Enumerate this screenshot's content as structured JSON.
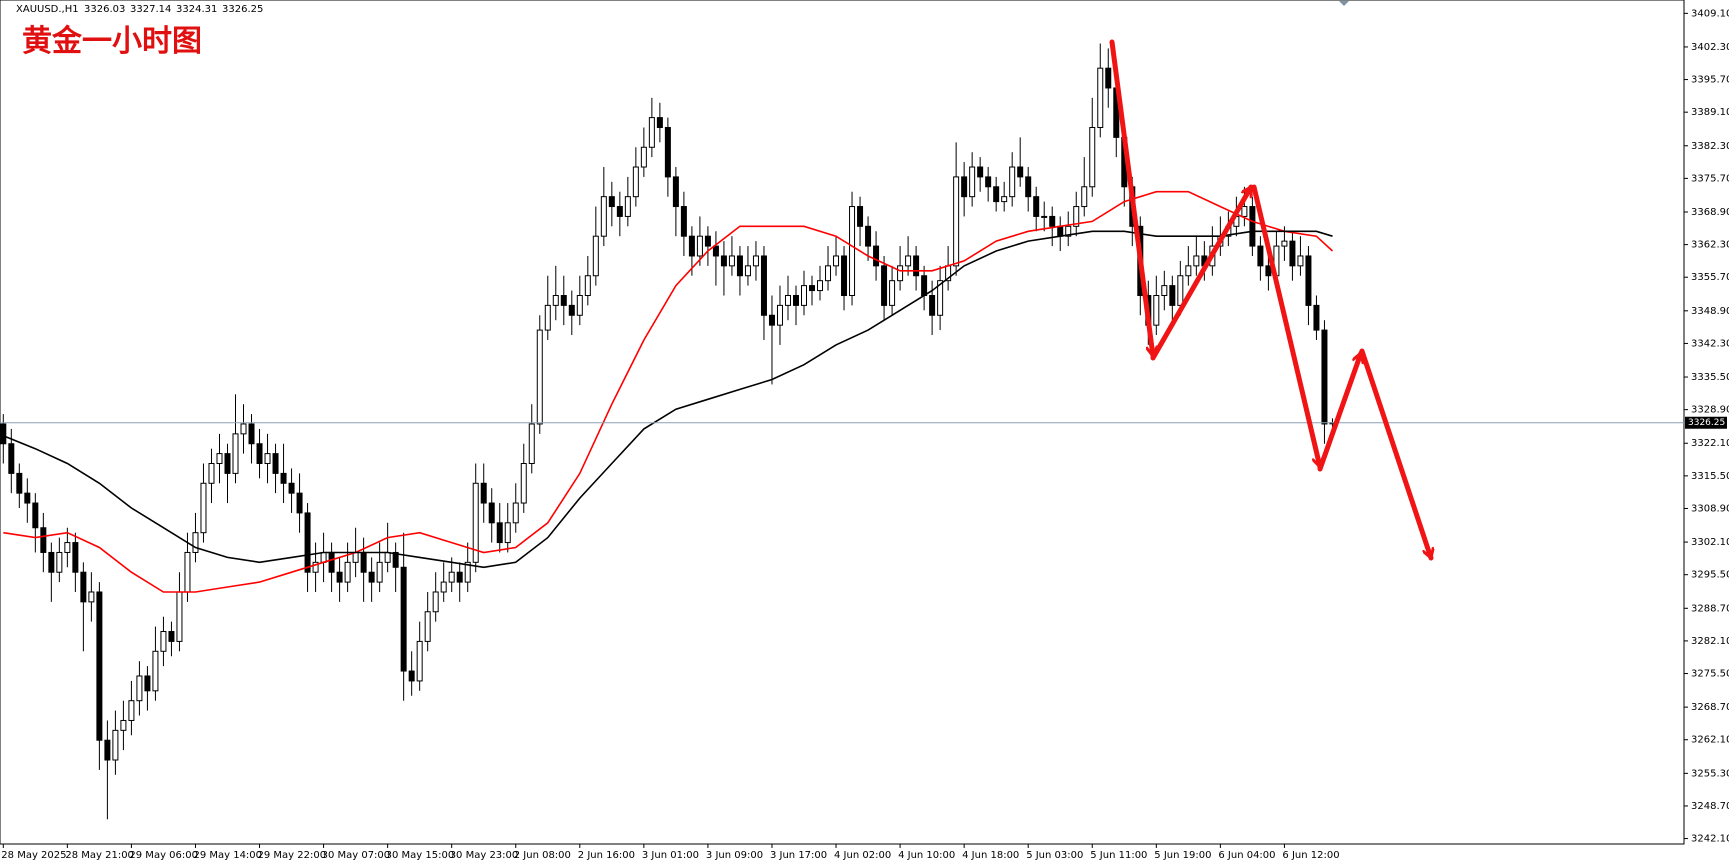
{
  "chart_data": {
    "type": "candlestick",
    "title": "黄金一小时图",
    "symbol": "XAUUSD.,H1",
    "categories": [
      "28 May 2025",
      null,
      null,
      null,
      null,
      null,
      null,
      null,
      "28 May 21:00",
      null,
      null,
      null,
      null,
      null,
      null,
      null,
      "29 May 06:00",
      null,
      null,
      null,
      null,
      null,
      null,
      null,
      "29 May 14:00",
      null,
      null,
      null,
      null,
      null,
      null,
      null,
      "29 May 22:00",
      null,
      null,
      null,
      null,
      null,
      null,
      null,
      "30 May 07:00",
      null,
      null,
      null,
      null,
      null,
      null,
      null,
      "30 May 15:00",
      null,
      null,
      null,
      null,
      null,
      null,
      null,
      "30 May 23:00",
      null,
      null,
      null,
      null,
      null,
      null,
      null,
      "2 Jun 08:00",
      null,
      null,
      null,
      null,
      null,
      null,
      null,
      "2 Jun 16:00",
      null,
      null,
      null,
      null,
      null,
      null,
      null,
      "3 Jun 01:00",
      null,
      null,
      null,
      null,
      null,
      null,
      null,
      "3 Jun 09:00",
      null,
      null,
      null,
      null,
      null,
      null,
      null,
      "3 Jun 17:00",
      null,
      null,
      null,
      null,
      null,
      null,
      null,
      "4 Jun 02:00",
      null,
      null,
      null,
      null,
      null,
      null,
      null,
      "4 Jun 10:00",
      null,
      null,
      null,
      null,
      null,
      null,
      null,
      "4 Jun 18:00",
      null,
      null,
      null,
      null,
      null,
      null,
      null,
      "5 Jun 03:00",
      null,
      null,
      null,
      null,
      null,
      null,
      null,
      "5 Jun 11:00",
      null,
      null,
      null,
      null,
      null,
      null,
      null,
      "5 Jun 19:00",
      null,
      null,
      null,
      null,
      null,
      null,
      null,
      "6 Jun 04:00",
      null,
      null,
      null,
      null,
      null,
      null,
      null,
      "6 Jun 12:00",
      null,
      null,
      null,
      null,
      null,
      null
    ],
    "ohlc": [
      [
        3326,
        3328,
        3318,
        3322
      ],
      [
        3322,
        3325,
        3312,
        3316
      ],
      [
        3316,
        3318,
        3309,
        3312
      ],
      [
        3312,
        3315,
        3306,
        3310
      ],
      [
        3310,
        3312,
        3300,
        3305
      ],
      [
        3305,
        3308,
        3296,
        3300
      ],
      [
        3300,
        3302,
        3290,
        3296
      ],
      [
        3296,
        3303,
        3294,
        3300
      ],
      [
        3300,
        3305,
        3297,
        3302
      ],
      [
        3302,
        3304,
        3292,
        3296
      ],
      [
        3296,
        3298,
        3280,
        3290
      ],
      [
        3290,
        3296,
        3286,
        3292
      ],
      [
        3292,
        3294,
        3256,
        3262
      ],
      [
        3262,
        3266,
        3246,
        3258
      ],
      [
        3258,
        3268,
        3255,
        3264
      ],
      [
        3264,
        3270,
        3260,
        3266
      ],
      [
        3266,
        3274,
        3263,
        3270
      ],
      [
        3270,
        3278,
        3267,
        3275
      ],
      [
        3275,
        3277,
        3268,
        3272
      ],
      [
        3272,
        3285,
        3270,
        3280
      ],
      [
        3280,
        3287,
        3277,
        3284
      ],
      [
        3284,
        3286,
        3279,
        3282
      ],
      [
        3282,
        3296,
        3280,
        3292
      ],
      [
        3292,
        3304,
        3290,
        3300
      ],
      [
        3300,
        3308,
        3298,
        3304
      ],
      [
        3304,
        3318,
        3302,
        3314
      ],
      [
        3314,
        3321,
        3310,
        3318
      ],
      [
        3318,
        3324,
        3314,
        3320
      ],
      [
        3320,
        3322,
        3310,
        3316
      ],
      [
        3316,
        3332,
        3314,
        3324
      ],
      [
        3324,
        3330,
        3320,
        3326
      ],
      [
        3326,
        3328,
        3318,
        3322
      ],
      [
        3322,
        3325,
        3315,
        3318
      ],
      [
        3318,
        3324,
        3314,
        3320
      ],
      [
        3320,
        3322,
        3312,
        3316
      ],
      [
        3316,
        3322,
        3310,
        3314
      ],
      [
        3314,
        3317,
        3308,
        3312
      ],
      [
        3312,
        3316,
        3304,
        3308
      ],
      [
        3308,
        3310,
        3292,
        3296
      ],
      [
        3296,
        3302,
        3292,
        3298
      ],
      [
        3298,
        3304,
        3294,
        3300
      ],
      [
        3300,
        3302,
        3292,
        3296
      ],
      [
        3296,
        3299,
        3290,
        3294
      ],
      [
        3294,
        3302,
        3292,
        3298
      ],
      [
        3298,
        3305,
        3295,
        3300
      ],
      [
        3300,
        3303,
        3290,
        3296
      ],
      [
        3296,
        3299,
        3290,
        3294
      ],
      [
        3294,
        3302,
        3292,
        3298
      ],
      [
        3298,
        3306,
        3296,
        3300
      ],
      [
        3300,
        3302,
        3292,
        3297
      ],
      [
        3297,
        3304,
        3270,
        3276
      ],
      [
        3276,
        3280,
        3271,
        3274
      ],
      [
        3274,
        3286,
        3272,
        3282
      ],
      [
        3282,
        3292,
        3280,
        3288
      ],
      [
        3288,
        3296,
        3286,
        3292
      ],
      [
        3292,
        3298,
        3290,
        3294
      ],
      [
        3294,
        3299,
        3292,
        3296
      ],
      [
        3296,
        3298,
        3290,
        3294
      ],
      [
        3294,
        3302,
        3292,
        3298
      ],
      [
        3298,
        3318,
        3296,
        3314
      ],
      [
        3314,
        3318,
        3306,
        3310
      ],
      [
        3310,
        3313,
        3302,
        3306
      ],
      [
        3306,
        3310,
        3300,
        3302
      ],
      [
        3302,
        3310,
        3300,
        3306
      ],
      [
        3306,
        3314,
        3304,
        3310
      ],
      [
        3310,
        3322,
        3308,
        3318
      ],
      [
        3318,
        3330,
        3316,
        3326
      ],
      [
        3326,
        3348,
        3324,
        3345
      ],
      [
        3345,
        3356,
        3343,
        3350
      ],
      [
        3350,
        3358,
        3347,
        3352
      ],
      [
        3352,
        3356,
        3346,
        3350
      ],
      [
        3350,
        3353,
        3344,
        3348
      ],
      [
        3348,
        3356,
        3346,
        3352
      ],
      [
        3352,
        3360,
        3350,
        3356
      ],
      [
        3356,
        3370,
        3354,
        3364
      ],
      [
        3364,
        3378,
        3362,
        3372
      ],
      [
        3372,
        3375,
        3366,
        3370
      ],
      [
        3370,
        3373,
        3364,
        3368
      ],
      [
        3368,
        3376,
        3366,
        3372
      ],
      [
        3372,
        3382,
        3370,
        3378
      ],
      [
        3378,
        3386,
        3376,
        3382
      ],
      [
        3382,
        3392,
        3380,
        3388
      ],
      [
        3388,
        3391,
        3383,
        3386
      ],
      [
        3386,
        3388,
        3372,
        3376
      ],
      [
        3376,
        3378,
        3364,
        3370
      ],
      [
        3370,
        3373,
        3360,
        3364
      ],
      [
        3364,
        3366,
        3356,
        3360
      ],
      [
        3360,
        3368,
        3358,
        3364
      ],
      [
        3364,
        3366,
        3358,
        3362
      ],
      [
        3362,
        3365,
        3354,
        3360
      ],
      [
        3360,
        3363,
        3352,
        3358
      ],
      [
        3358,
        3364,
        3356,
        3360
      ],
      [
        3360,
        3362,
        3352,
        3356
      ],
      [
        3356,
        3362,
        3354,
        3358
      ],
      [
        3358,
        3363,
        3355,
        3360
      ],
      [
        3360,
        3362,
        3343,
        3348
      ],
      [
        3348,
        3352,
        3334,
        3346
      ],
      [
        3346,
        3354,
        3342,
        3350
      ],
      [
        3350,
        3356,
        3347,
        3352
      ],
      [
        3352,
        3354,
        3346,
        3350
      ],
      [
        3350,
        3357,
        3348,
        3354
      ],
      [
        3354,
        3356,
        3350,
        3353
      ],
      [
        3353,
        3358,
        3351,
        3355
      ],
      [
        3355,
        3362,
        3353,
        3358
      ],
      [
        3358,
        3364,
        3356,
        3360
      ],
      [
        3360,
        3362,
        3349,
        3352
      ],
      [
        3352,
        3373,
        3350,
        3370
      ],
      [
        3370,
        3372,
        3362,
        3366
      ],
      [
        3366,
        3368,
        3359,
        3362
      ],
      [
        3362,
        3365,
        3355,
        3358
      ],
      [
        3358,
        3360,
        3347,
        3350
      ],
      [
        3350,
        3358,
        3348,
        3355
      ],
      [
        3355,
        3362,
        3353,
        3358
      ],
      [
        3358,
        3364,
        3356,
        3360
      ],
      [
        3360,
        3362,
        3353,
        3356
      ],
      [
        3356,
        3358,
        3349,
        3352
      ],
      [
        3352,
        3355,
        3344,
        3348
      ],
      [
        3348,
        3358,
        3345,
        3355
      ],
      [
        3355,
        3362,
        3353,
        3358
      ],
      [
        3358,
        3383,
        3356,
        3376
      ],
      [
        3376,
        3379,
        3368,
        3372
      ],
      [
        3372,
        3381,
        3370,
        3378
      ],
      [
        3378,
        3380,
        3373,
        3376
      ],
      [
        3376,
        3378,
        3371,
        3374
      ],
      [
        3374,
        3376,
        3369,
        3371
      ],
      [
        3371,
        3375,
        3369,
        3372
      ],
      [
        3372,
        3381,
        3370,
        3378
      ],
      [
        3378,
        3384,
        3374,
        3376
      ],
      [
        3376,
        3378,
        3369,
        3372
      ],
      [
        3372,
        3374,
        3365,
        3368
      ],
      [
        3368,
        3371,
        3365,
        3368
      ],
      [
        3368,
        3370,
        3362,
        3366
      ],
      [
        3366,
        3368,
        3361,
        3364
      ],
      [
        3364,
        3369,
        3362,
        3366
      ],
      [
        3366,
        3373,
        3364,
        3370
      ],
      [
        3370,
        3380,
        3368,
        3374
      ],
      [
        3374,
        3392,
        3372,
        3386
      ],
      [
        3386,
        3403,
        3384,
        3398
      ],
      [
        3398,
        3402,
        3390,
        3394
      ],
      [
        3394,
        3396,
        3380,
        3384
      ],
      [
        3384,
        3386,
        3370,
        3374
      ],
      [
        3374,
        3376,
        3362,
        3366
      ],
      [
        3366,
        3368,
        3348,
        3352
      ],
      [
        3352,
        3355,
        3342,
        3346
      ],
      [
        3346,
        3356,
        3344,
        3352
      ],
      [
        3352,
        3357,
        3349,
        3354
      ],
      [
        3354,
        3356,
        3347,
        3350
      ],
      [
        3350,
        3359,
        3348,
        3356
      ],
      [
        3356,
        3362,
        3354,
        3358
      ],
      [
        3358,
        3364,
        3356,
        3360
      ],
      [
        3360,
        3363,
        3355,
        3358
      ],
      [
        3358,
        3366,
        3356,
        3362
      ],
      [
        3362,
        3368,
        3360,
        3364
      ],
      [
        3364,
        3369,
        3362,
        3366
      ],
      [
        3366,
        3372,
        3364,
        3368
      ],
      [
        3368,
        3374,
        3366,
        3370
      ],
      [
        3370,
        3372,
        3360,
        3362
      ],
      [
        3362,
        3364,
        3355,
        3358
      ],
      [
        3358,
        3360,
        3353,
        3356
      ],
      [
        3356,
        3365,
        3354,
        3362
      ],
      [
        3362,
        3366,
        3359,
        3363
      ],
      [
        3363,
        3365,
        3355,
        3358
      ],
      [
        3358,
        3364,
        3356,
        3360
      ],
      [
        3360,
        3362,
        3346,
        3350
      ],
      [
        3350,
        3352,
        3343,
        3345
      ],
      [
        3345,
        3347,
        3322,
        3326
      ],
      [
        3326.03,
        3327.14,
        3324.31,
        3326.25
      ]
    ],
    "up_color": "#ffffff",
    "down_color": "#000000",
    "candle_outline": "#000000",
    "moving_averages": [
      {
        "color": "#ff0000",
        "x": [
          0,
          4,
          8,
          12,
          16,
          20,
          24,
          28,
          32,
          36,
          40,
          44,
          48,
          52,
          56,
          60,
          64,
          68,
          72,
          76,
          80,
          84,
          88,
          92,
          96,
          100,
          104,
          108,
          112,
          116,
          120,
          124,
          128,
          132,
          136,
          140,
          144,
          148,
          152,
          156,
          160,
          164,
          166
        ],
        "values": [
          3304,
          3303,
          3304,
          3301,
          3296,
          3292,
          3292,
          3293,
          3294,
          3296,
          3298,
          3300,
          3303,
          3304,
          3302,
          3300,
          3301,
          3306,
          3316,
          3330,
          3343,
          3354,
          3361,
          3366,
          3366,
          3366,
          3364,
          3360,
          3357,
          3357,
          3359,
          3363,
          3365,
          3366,
          3367,
          3371,
          3373,
          3373,
          3370,
          3367,
          3365,
          3364,
          3361
        ]
      },
      {
        "color": "#000000",
        "x": [
          0,
          4,
          8,
          12,
          16,
          20,
          24,
          28,
          32,
          36,
          40,
          44,
          48,
          52,
          56,
          60,
          64,
          68,
          72,
          76,
          80,
          84,
          88,
          92,
          96,
          100,
          104,
          108,
          112,
          116,
          120,
          124,
          128,
          132,
          136,
          140,
          144,
          148,
          152,
          156,
          160,
          164,
          166
        ],
        "values": [
          3323.6,
          3321,
          3318,
          3314,
          3309,
          3305,
          3301,
          3299,
          3298,
          3299,
          3300,
          3300,
          3300,
          3299,
          3298,
          3297,
          3298,
          3303,
          3311,
          3318,
          3325,
          3329,
          3331,
          3333,
          3335,
          3338,
          3342,
          3345,
          3349,
          3353,
          3358,
          3361,
          3363,
          3364,
          3365,
          3365,
          3364,
          3364,
          3364,
          3365,
          3365,
          3365,
          3364
        ]
      }
    ],
    "ylim": [
      3241,
      3411.8
    ],
    "yticks": [
      {
        "value": 3409.1,
        "label": "3409.10"
      },
      {
        "value": 3402.3,
        "label": "3402.30"
      },
      {
        "value": 3395.7,
        "label": "3395.70"
      },
      {
        "value": 3389.1,
        "label": "3389.10"
      },
      {
        "value": 3382.3,
        "label": "3382.30"
      },
      {
        "value": 3375.7,
        "label": "3375.70"
      },
      {
        "value": 3368.9,
        "label": "3368.90"
      },
      {
        "value": 3362.3,
        "label": "3362.30"
      },
      {
        "value": 3355.7,
        "label": "3355.70"
      },
      {
        "value": 3348.9,
        "label": "3348.90"
      },
      {
        "value": 3342.3,
        "label": "3342.30"
      },
      {
        "value": 3335.5,
        "label": "3335.50"
      },
      {
        "value": 3328.9,
        "label": "3328.90"
      },
      {
        "value": 3322.1,
        "label": "3322.10"
      },
      {
        "value": 3315.5,
        "label": "3315.50"
      },
      {
        "value": 3308.9,
        "label": "3308.90"
      },
      {
        "value": 3302.1,
        "label": "3302.10"
      },
      {
        "value": 3295.5,
        "label": "3295.50"
      },
      {
        "value": 3288.7,
        "label": "3288.70"
      },
      {
        "value": 3282.1,
        "label": "3282.10"
      },
      {
        "value": 3275.5,
        "label": "3275.50"
      },
      {
        "value": 3268.7,
        "label": "3268.70"
      },
      {
        "value": 3262.1,
        "label": "3262.10"
      },
      {
        "value": 3255.3,
        "label": "3255.30"
      },
      {
        "value": 3248.7,
        "label": "3248.70"
      },
      {
        "value": 3242.1,
        "label": "3242.10"
      }
    ],
    "price_line_color": "#8ca0b4"
  }
}
